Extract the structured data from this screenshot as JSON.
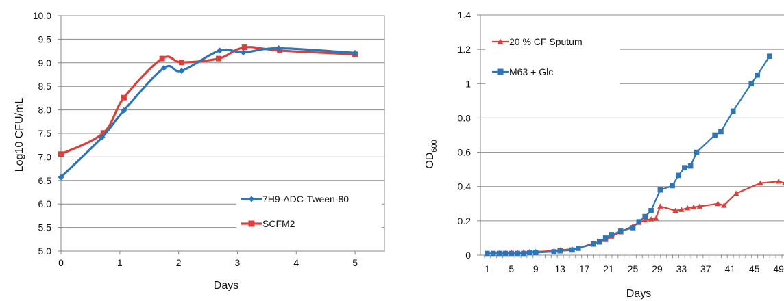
{
  "chart_data": [
    {
      "type": "line",
      "xlabel": "Days",
      "ylabel": "Log10 CFU/mL",
      "xlim": [
        0,
        5.5
      ],
      "ylim": [
        5.0,
        10.0
      ],
      "x_ticks": [
        "0",
        "1",
        "2",
        "3",
        "4",
        "5"
      ],
      "y_ticks": [
        "5.0",
        "5.5",
        "6.0",
        "6.5",
        "7.0",
        "7.5",
        "8.0",
        "8.5",
        "9.0",
        "9.5",
        "10.0"
      ],
      "grid": "horizontal",
      "legend": "bottom-right",
      "series": [
        {
          "name": "7H9-ADC-Tween-80",
          "color": "#2e75b6",
          "marker": "diamond",
          "x": [
            0,
            0.7,
            1.07,
            1.75,
            2.05,
            2.7,
            3.1,
            3.7,
            5.0
          ],
          "y": [
            6.57,
            7.42,
            7.99,
            8.89,
            8.83,
            9.26,
            9.22,
            9.31,
            9.21
          ]
        },
        {
          "name": "SCFM2",
          "color": "#d9403a",
          "marker": "square",
          "x": [
            0,
            0.72,
            1.07,
            1.72,
            2.05,
            2.68,
            3.12,
            3.72,
            5.0
          ],
          "y": [
            7.06,
            7.51,
            8.26,
            9.09,
            9.01,
            9.09,
            9.33,
            9.26,
            9.18
          ]
        }
      ]
    },
    {
      "type": "line",
      "xlabel": "Days",
      "ylabel": "OD600",
      "ylabel_main": "OD",
      "ylabel_sub": "600",
      "xlim": [
        0,
        50
      ],
      "ylim": [
        0,
        1.4
      ],
      "x_ticks": [
        "1",
        "5",
        "9",
        "13",
        "17",
        "21",
        "25",
        "29",
        "33",
        "37",
        "41",
        "45",
        "49"
      ],
      "y_ticks": [
        "0",
        "0.2",
        "0.4",
        "0.6",
        "0.8",
        "1",
        "1.2",
        "1.4"
      ],
      "grid": "horizontal",
      "legend": "top-left",
      "series": [
        {
          "name": "20 % CF Sputum",
          "color": "#d9403a",
          "marker": "triangle",
          "x": [
            1,
            2,
            3,
            4,
            5,
            6,
            7,
            8,
            9,
            12,
            13,
            15,
            16,
            18.5,
            19.5,
            20.5,
            21.5,
            23,
            25,
            26,
            27,
            28,
            28.8,
            29.5,
            32,
            33,
            34,
            35,
            36,
            39,
            40,
            42,
            46,
            49,
            50
          ],
          "y": [
            0.01,
            0.01,
            0.012,
            0.012,
            0.015,
            0.015,
            0.018,
            0.02,
            0.02,
            0.025,
            0.03,
            0.035,
            0.04,
            0.07,
            0.075,
            0.09,
            0.11,
            0.135,
            0.17,
            0.19,
            0.205,
            0.21,
            0.215,
            0.285,
            0.26,
            0.265,
            0.275,
            0.28,
            0.285,
            0.3,
            0.29,
            0.36,
            0.42,
            0.43,
            0.42
          ]
        },
        {
          "name": "M63 + Glc",
          "color": "#2e75b6",
          "marker": "square",
          "x": [
            1,
            2,
            3,
            4,
            5,
            6,
            7,
            8,
            9,
            12,
            13,
            15,
            16,
            18.5,
            19.5,
            20.5,
            21.5,
            23,
            25,
            26,
            27,
            28,
            29.5,
            31.5,
            32.5,
            33.5,
            34.5,
            35.5,
            38.5,
            39.5,
            41.5,
            44.5,
            45.5,
            47.5
          ],
          "y": [
            0.01,
            0.01,
            0.01,
            0.01,
            0.01,
            0.01,
            0.01,
            0.015,
            0.015,
            0.02,
            0.025,
            0.03,
            0.04,
            0.065,
            0.08,
            0.1,
            0.12,
            0.14,
            0.16,
            0.195,
            0.225,
            0.26,
            0.38,
            0.405,
            0.465,
            0.51,
            0.52,
            0.6,
            0.7,
            0.72,
            0.84,
            1.0,
            1.05,
            1.16
          ]
        }
      ]
    }
  ]
}
